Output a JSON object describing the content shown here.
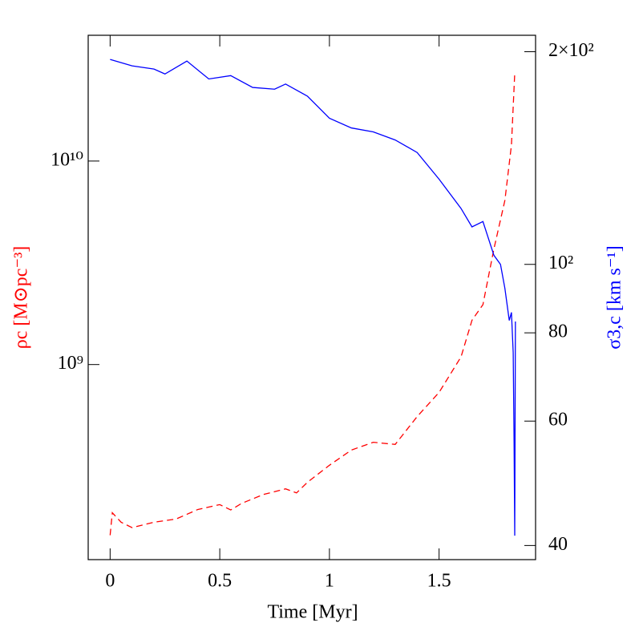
{
  "chart_data": {
    "type": "line",
    "xlabel": "Time [Myr]",
    "ylabel": "ρc [M⊙pc⁻³]",
    "y2label": "σ3,c [km s⁻¹]",
    "xlim": [
      -0.1,
      1.94
    ],
    "xticks": [
      0,
      0.5,
      1,
      1.5
    ],
    "ylim": [
      110000000,
      41500000000
    ],
    "yscale": "log",
    "yticks": [
      {
        "value": 1000000000,
        "label": "10⁹"
      },
      {
        "value": 10000000000,
        "label": "10¹⁰"
      }
    ],
    "y2lim": [
      38.2,
      211
    ],
    "y2scale": "log",
    "y2ticks": [
      40,
      60,
      80,
      {
        "value": 100,
        "label": "10²"
      },
      {
        "value": 200,
        "label": "2×10²"
      }
    ],
    "series": [
      {
        "name": "ρc",
        "color": "#ff0000",
        "linestyle": "dashed",
        "x": [
          0,
          0.01,
          0.05,
          0.1,
          0.2,
          0.3,
          0.4,
          0.5,
          0.55,
          0.6,
          0.7,
          0.8,
          0.85,
          0.9,
          1.0,
          1.1,
          1.2,
          1.3,
          1.4,
          1.5,
          1.6,
          1.65,
          1.7,
          1.75,
          1.8,
          1.83,
          1.845
        ],
        "values": [
          145000000,
          187000000,
          168000000,
          158000000,
          168000000,
          174000000,
          194000000,
          205000000,
          193000000,
          208000000,
          230000000,
          245000000,
          234000000,
          264000000,
          320000000,
          380000000,
          415000000,
          405000000,
          555000000,
          730000000,
          1090000000,
          1650000000,
          1970000000,
          3700000000,
          6400000000,
          12000000000,
          27000000000
        ]
      },
      {
        "name": "σ3,c",
        "color": "#0000ff",
        "linestyle": "solid",
        "axis": "y2",
        "x": [
          0,
          0.1,
          0.2,
          0.25,
          0.35,
          0.45,
          0.55,
          0.65,
          0.75,
          0.8,
          0.9,
          1.0,
          1.1,
          1.2,
          1.3,
          1.4,
          1.5,
          1.6,
          1.65,
          1.7,
          1.75,
          1.78,
          1.8,
          1.82,
          1.83,
          1.838,
          1.842,
          1.845,
          1.848
        ],
        "values": [
          195,
          191,
          189,
          186,
          194,
          183,
          185,
          178,
          177,
          180,
          173,
          161,
          156,
          154,
          150,
          144,
          132,
          120,
          113,
          115,
          103,
          100,
          92.5,
          83.3,
          85.5,
          75,
          56,
          41.3,
          83
        ]
      }
    ]
  }
}
